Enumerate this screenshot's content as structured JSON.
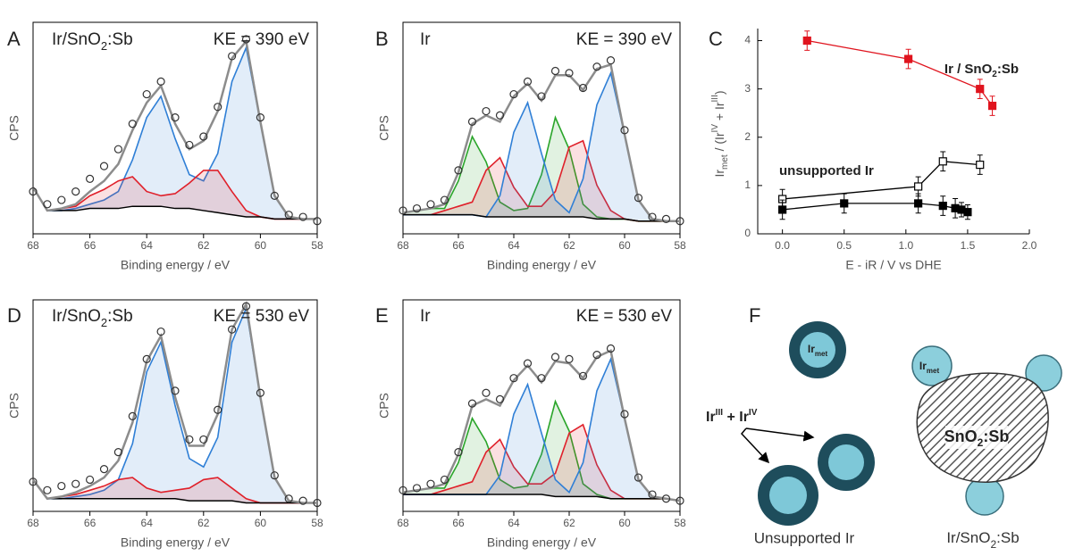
{
  "chart_data": [
    {
      "type": "xps",
      "panel": "A",
      "label": [
        "Ir/SnO",
        "2",
        ":Sb"
      ],
      "label_color": "#e0141e",
      "annotation": "KE = 390 eV",
      "xlabel": "Binding energy / eV",
      "ylabel": "CPS",
      "x": [
        68,
        67.5,
        67,
        66.5,
        66,
        65.5,
        65,
        64.5,
        64,
        63.5,
        63,
        62.5,
        62,
        61.5,
        61,
        60.5,
        60,
        59.5,
        59,
        58.5,
        58
      ],
      "xlim": [
        68,
        58
      ],
      "xticks": [
        68,
        66,
        64,
        62,
        60,
        58
      ],
      "ylim": [
        0,
        100
      ],
      "series": [
        {
          "style": "area",
          "color": "#2f7fd6",
          "values": [
            0,
            0,
            0,
            1,
            2,
            4,
            8,
            22,
            42,
            52,
            33,
            16,
            14,
            28,
            63,
            80,
            45,
            11,
            1,
            0,
            0
          ]
        },
        {
          "style": "area",
          "color": "#e0202a",
          "values": [
            0,
            0,
            1,
            2,
            6,
            9,
            13,
            14,
            7,
            5,
            7,
            12,
            19,
            20,
            11,
            3,
            0,
            0,
            0,
            0,
            0
          ]
        },
        {
          "style": "baseline",
          "color": "#000000",
          "values": [
            22,
            11,
            11,
            11,
            12,
            12,
            12,
            13,
            13,
            13,
            12,
            12,
            11,
            10,
            9,
            8,
            8,
            7,
            7,
            7,
            7
          ]
        },
        {
          "style": "line",
          "color": "#8c8c8c",
          "values": [
            22,
            11,
            12,
            14,
            20,
            25,
            33,
            49,
            62,
            70,
            52,
            40,
            44,
            58,
            83,
            91,
            53,
            18,
            8,
            7,
            7
          ]
        },
        {
          "style": "markers",
          "color": "#333333",
          "values": [
            20,
            14,
            16,
            20,
            26,
            32,
            40,
            52,
            66,
            72,
            55,
            42,
            46,
            60,
            84,
            92,
            55,
            18,
            9,
            8,
            6
          ]
        }
      ]
    },
    {
      "type": "xps",
      "panel": "B",
      "label": [
        "Ir"
      ],
      "label_color": "#222222",
      "annotation": "KE = 390 eV",
      "xlabel": "Binding energy / eV",
      "ylabel": "CPS",
      "x": [
        68,
        67.5,
        67,
        66.5,
        66,
        65.5,
        65,
        64.5,
        64,
        63.5,
        63,
        62.5,
        62,
        61.5,
        61,
        60.5,
        60,
        59.5,
        59,
        58.5,
        58
      ],
      "xlim": [
        68,
        58
      ],
      "xticks": [
        68,
        66,
        64,
        62,
        60,
        58
      ],
      "ylim": [
        0,
        100
      ],
      "series": [
        {
          "style": "area",
          "color": "#2aa52a",
          "values": [
            1,
            2,
            3,
            3,
            16,
            37,
            26,
            7,
            3,
            4,
            20,
            47,
            32,
            6,
            1,
            0,
            0,
            0,
            0,
            0,
            0
          ]
        },
        {
          "style": "area",
          "color": "#e0202a",
          "values": [
            0,
            0,
            0,
            2,
            4,
            6,
            22,
            28,
            14,
            5,
            5,
            12,
            33,
            36,
            16,
            4,
            0,
            0,
            0,
            0,
            0
          ]
        },
        {
          "style": "area",
          "color": "#2f7fd6",
          "values": [
            0,
            0,
            0,
            0,
            0,
            0,
            0,
            10,
            40,
            54,
            30,
            8,
            2,
            18,
            54,
            69,
            40,
            10,
            1,
            0,
            0
          ]
        },
        {
          "style": "baseline",
          "color": "#000000",
          "values": [
            9,
            9,
            9,
            9,
            9,
            9,
            8,
            8,
            8,
            8,
            8,
            8,
            8,
            8,
            7,
            7,
            7,
            6,
            6,
            6,
            6
          ]
        },
        {
          "style": "line",
          "color": "#8c8c8c",
          "values": [
            10,
            11,
            12,
            14,
            29,
            52,
            56,
            53,
            65,
            71,
            63,
            75,
            75,
            68,
            78,
            80,
            47,
            16,
            7,
            6,
            6
          ]
        },
        {
          "style": "markers",
          "color": "#333333",
          "values": [
            11,
            12,
            14,
            16,
            30,
            53,
            58,
            56,
            66,
            72,
            65,
            77,
            76,
            69,
            79,
            82,
            49,
            17,
            8,
            7,
            6
          ]
        }
      ]
    },
    {
      "type": "scatter",
      "panel": "C",
      "xlabel": "E - iR / V vs DHE",
      "ylabel": [
        "Ir",
        "met",
        " / (Ir",
        "IV",
        " + Ir",
        "III",
        ")"
      ],
      "xlim": [
        -0.2,
        2.0
      ],
      "ylim": [
        0,
        4.25
      ],
      "xticks": [
        {
          "value": 0,
          "label": "0.0"
        },
        {
          "value": 0.5,
          "label": "0.5"
        },
        {
          "value": 1,
          "label": "1.0"
        },
        {
          "value": 1.5,
          "label": "1.5"
        },
        {
          "value": 2,
          "label": "2.0"
        }
      ],
      "yticks": [
        0,
        1,
        2,
        3,
        4
      ],
      "series": [
        {
          "label": [
            "Ir / SnO",
            "2",
            ":Sb"
          ],
          "color": "#e0141e",
          "marker": "filled",
          "x": [
            0.2,
            1.02,
            1.6,
            1.7
          ],
          "values": [
            4.0,
            3.62,
            3.0,
            2.65
          ],
          "errors": [
            0.2,
            0.2,
            0.2,
            0.2
          ]
        },
        {
          "label": [
            "unsupported Ir"
          ],
          "color": "#000000",
          "marker": "open",
          "x": [
            0,
            1.1,
            1.3,
            1.6
          ],
          "values": [
            0.72,
            0.98,
            1.5,
            1.43
          ],
          "errors": [
            0.2,
            0.2,
            0.2,
            0.2
          ]
        },
        {
          "color": "#000000",
          "marker": "filled",
          "x": [
            0,
            0.5,
            1.1,
            1.3,
            1.4,
            1.45,
            1.5
          ],
          "values": [
            0.5,
            0.63,
            0.63,
            0.58,
            0.53,
            0.5,
            0.45
          ],
          "errors": [
            0.2,
            0.2,
            0.2,
            0.2,
            0.2,
            0.15,
            0.15
          ]
        }
      ]
    },
    {
      "type": "xps",
      "panel": "D",
      "label": [
        "Ir/SnO",
        "2",
        ":Sb"
      ],
      "label_color": "#e0141e",
      "annotation": "KE = 530 eV",
      "xlabel": "Binding energy / eV",
      "ylabel": "CPS",
      "x": [
        68,
        67.5,
        67,
        66.5,
        66,
        65.5,
        65,
        64.5,
        64,
        63.5,
        63,
        62.5,
        62,
        61.5,
        61,
        60.5,
        60,
        59.5,
        59,
        58.5,
        58
      ],
      "xlim": [
        68,
        58
      ],
      "xticks": [
        68,
        66,
        64,
        62,
        60,
        58
      ],
      "ylim": [
        0,
        100
      ],
      "series": [
        {
          "style": "area",
          "color": "#2f7fd6",
          "values": [
            0,
            0,
            0,
            1,
            2,
            4,
            9,
            26,
            60,
            74,
            44,
            20,
            16,
            30,
            75,
            92,
            50,
            12,
            1,
            0,
            0
          ]
        },
        {
          "style": "area",
          "color": "#e0202a",
          "values": [
            0,
            0,
            1,
            2,
            4,
            6,
            9,
            10,
            5,
            3,
            4,
            6,
            10,
            11,
            6,
            2,
            0,
            0,
            0,
            0,
            0
          ]
        },
        {
          "style": "baseline",
          "color": "#000000",
          "values": [
            15,
            6,
            6,
            6,
            6,
            6,
            6,
            6,
            6,
            6,
            6,
            5,
            5,
            5,
            5,
            4,
            4,
            4,
            4,
            4,
            4
          ]
        },
        {
          "style": "line",
          "color": "#8c8c8c",
          "values": [
            15,
            6,
            7,
            9,
            12,
            16,
            24,
            42,
            71,
            83,
            54,
            31,
            31,
            46,
            86,
            98,
            54,
            16,
            5,
            4,
            4
          ]
        },
        {
          "style": "markers",
          "color": "#333333",
          "values": [
            14,
            10,
            12,
            13,
            15,
            20,
            28,
            45,
            72,
            85,
            57,
            34,
            34,
            48,
            86,
            97,
            56,
            17,
            6,
            5,
            4
          ]
        }
      ]
    },
    {
      "type": "xps",
      "panel": "E",
      "label": [
        "Ir"
      ],
      "label_color": "#222222",
      "annotation": "KE = 530 eV",
      "xlabel": "Binding energy / eV",
      "ylabel": "CPS",
      "x": [
        68,
        67.5,
        67,
        66.5,
        66,
        65.5,
        65,
        64.5,
        64,
        63.5,
        63,
        62.5,
        62,
        61.5,
        61,
        60.5,
        60,
        59.5,
        59,
        58.5,
        58
      ],
      "xlim": [
        68,
        58
      ],
      "xticks": [
        68,
        66,
        64,
        62,
        60,
        58
      ],
      "ylim": [
        0,
        100
      ],
      "series": [
        {
          "style": "area",
          "color": "#2aa52a",
          "values": [
            1,
            2,
            3,
            3,
            15,
            36,
            25,
            7,
            3,
            4,
            19,
            45,
            31,
            6,
            1,
            0,
            0,
            0,
            0,
            0,
            0
          ]
        },
        {
          "style": "area",
          "color": "#e0202a",
          "values": [
            0,
            0,
            0,
            2,
            4,
            6,
            20,
            26,
            13,
            5,
            5,
            11,
            30,
            34,
            15,
            4,
            0,
            0,
            0,
            0,
            0
          ]
        },
        {
          "style": "area",
          "color": "#2f7fd6",
          "values": [
            0,
            0,
            0,
            0,
            0,
            0,
            0,
            9,
            38,
            52,
            29,
            8,
            2,
            16,
            50,
            66,
            38,
            9,
            1,
            0,
            0
          ]
        },
        {
          "style": "baseline",
          "color": "#000000",
          "values": [
            8,
            8,
            8,
            8,
            8,
            8,
            8,
            8,
            8,
            8,
            8,
            7,
            7,
            7,
            7,
            6,
            6,
            6,
            6,
            6,
            5
          ]
        },
        {
          "style": "line",
          "color": "#8c8c8c",
          "values": [
            9,
            10,
            11,
            13,
            27,
            50,
            53,
            50,
            62,
            69,
            61,
            71,
            70,
            63,
            73,
            76,
            44,
            15,
            7,
            6,
            5
          ]
        },
        {
          "style": "markers",
          "color": "#333333",
          "values": [
            10,
            11,
            13,
            15,
            28,
            51,
            56,
            53,
            63,
            70,
            63,
            73,
            72,
            64,
            74,
            77,
            46,
            16,
            8,
            6,
            5
          ]
        }
      ]
    }
  ],
  "diagram": {
    "panel": "F",
    "ir_met": [
      "Ir",
      "met"
    ],
    "oxide": [
      "Ir",
      "III",
      " + Ir",
      "IV"
    ],
    "ir_met_supported": [
      "Ir",
      "met"
    ],
    "support": [
      "SnO",
      "2",
      ":Sb"
    ],
    "caption_left": "Unsupported Ir",
    "caption_right": [
      "Ir/SnO",
      "2",
      ":Sb"
    ]
  }
}
